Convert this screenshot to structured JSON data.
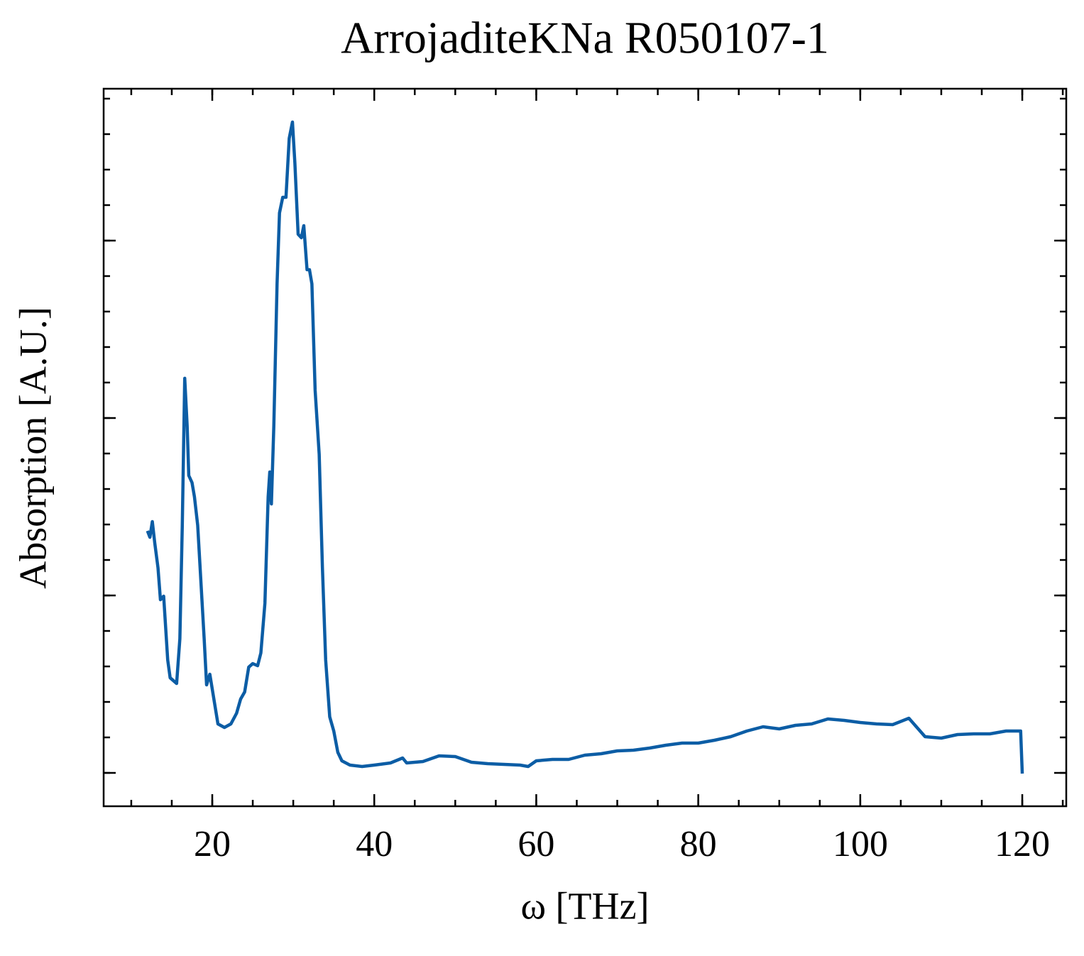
{
  "chart_data": {
    "type": "line",
    "title": "ArrojaditeKNa R050107-1",
    "x_label": "ω [THz]",
    "y_label": "Absorption [A.U.]",
    "x": [
      12,
      12.3,
      12.6,
      12.9,
      13.3,
      13.6,
      14,
      14.5,
      14.8,
      15.3,
      15.6,
      16,
      16.3,
      16.6,
      16.9,
      17.1,
      17.5,
      17.8,
      18.2,
      18.6,
      19,
      19.3,
      19.7,
      20.2,
      20.7,
      21.5,
      22.3,
      23,
      23.5,
      24,
      24.5,
      25,
      25.6,
      26,
      26.5,
      26.9,
      27.1,
      27.3,
      27.6,
      28,
      28.3,
      28.7,
      29.1,
      29.5,
      29.9,
      30.2,
      30.6,
      31,
      31.3,
      31.7,
      32,
      32.3,
      32.7,
      33.2,
      33.6,
      34,
      34.5,
      35,
      35.5,
      36,
      37,
      38.5,
      40,
      42,
      43.5,
      44,
      46,
      48,
      50,
      52,
      54,
      56,
      58,
      59,
      60,
      62,
      64,
      66,
      68,
      70,
      72,
      74,
      76,
      78,
      80,
      82,
      84,
      86,
      88,
      90,
      92,
      94,
      96,
      98,
      100,
      102,
      104,
      106,
      107,
      108,
      110,
      112,
      114,
      116,
      118,
      119.8,
      120
    ],
    "series": [
      {
        "name": "ArrojaditeKNa R050107-1",
        "color": "#0c5da5",
        "values": [
          1.364,
          1.328,
          1.416,
          1.296,
          1.156,
          0.976,
          0.996,
          0.636,
          0.536,
          0.516,
          0.504,
          0.756,
          1.396,
          2.224,
          1.956,
          1.676,
          1.636,
          1.556,
          1.396,
          1.076,
          0.756,
          0.496,
          0.556,
          0.416,
          0.276,
          0.256,
          0.276,
          0.336,
          0.416,
          0.456,
          0.596,
          0.616,
          0.604,
          0.676,
          0.956,
          1.556,
          1.696,
          1.516,
          1.956,
          2.756,
          3.156,
          3.244,
          3.244,
          3.576,
          3.668,
          3.436,
          3.036,
          3.016,
          3.084,
          2.836,
          2.836,
          2.756,
          2.156,
          1.796,
          1.156,
          0.636,
          0.316,
          0.236,
          0.116,
          0.068,
          0.044,
          0.036,
          0.044,
          0.056,
          0.084,
          0.056,
          0.064,
          0.096,
          0.092,
          0.06,
          0.052,
          0.048,
          0.044,
          0.036,
          0.068,
          0.076,
          0.076,
          0.1,
          0.108,
          0.124,
          0.128,
          0.14,
          0.156,
          0.168,
          0.168,
          0.184,
          0.204,
          0.236,
          0.26,
          0.248,
          0.268,
          0.276,
          0.304,
          0.296,
          0.284,
          0.276,
          0.272,
          0.308,
          0.256,
          0.204,
          0.196,
          0.216,
          0.22,
          0.22,
          0.236,
          0.236,
          -0.004
        ]
      }
    ],
    "xlim": [
      6.59,
      125.43
    ],
    "xticks": [
      20,
      40,
      60,
      80,
      100,
      120
    ],
    "ylim": [
      -0.188,
      3.856
    ],
    "yticks": [
      0,
      1,
      2,
      3
    ]
  }
}
